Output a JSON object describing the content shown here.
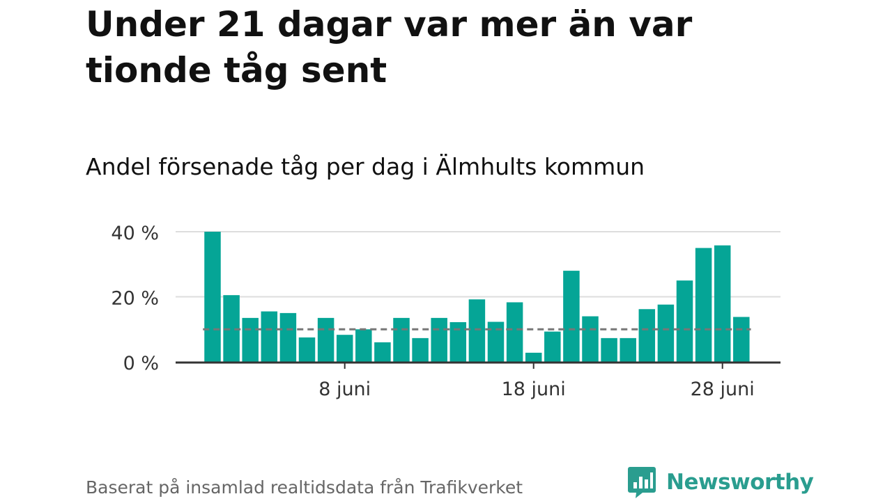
{
  "header": {
    "title": "Under 21 dagar var mer än var tionde tåg sent",
    "subtitle": "Andel försenade tåg per dag i Älmhults kommun"
  },
  "footer": {
    "source": "Baserat på insamlad realtidsdata från Trafikverket",
    "brand": "Newsworthy"
  },
  "colors": {
    "bar": "#05a596",
    "reference_line": "#777777",
    "grid": "#dddddd",
    "axis": "#333333",
    "brand": "#2a9d8f"
  },
  "chart_data": {
    "type": "bar",
    "x_start_day": 1,
    "month": "juni",
    "values": [
      40,
      20.5,
      13.5,
      15.5,
      15,
      7.5,
      13.5,
      8.3,
      10,
      6,
      13.5,
      7.3,
      13.5,
      12.2,
      19.2,
      12.3,
      18.3,
      2.8,
      9.3,
      28,
      14,
      7.3,
      7.3,
      16.2,
      17.6,
      25,
      35,
      35.8,
      13.8
    ],
    "reference_value": 10,
    "y_ticks": [
      0,
      20,
      40
    ],
    "y_tick_labels": [
      "0 %",
      "20 %",
      "40 %"
    ],
    "ylim": [
      0,
      40
    ],
    "x_tick_days": [
      8,
      18,
      28
    ],
    "x_tick_labels": [
      "8 juni",
      "18 juni",
      "28 juni"
    ],
    "grid": true
  }
}
